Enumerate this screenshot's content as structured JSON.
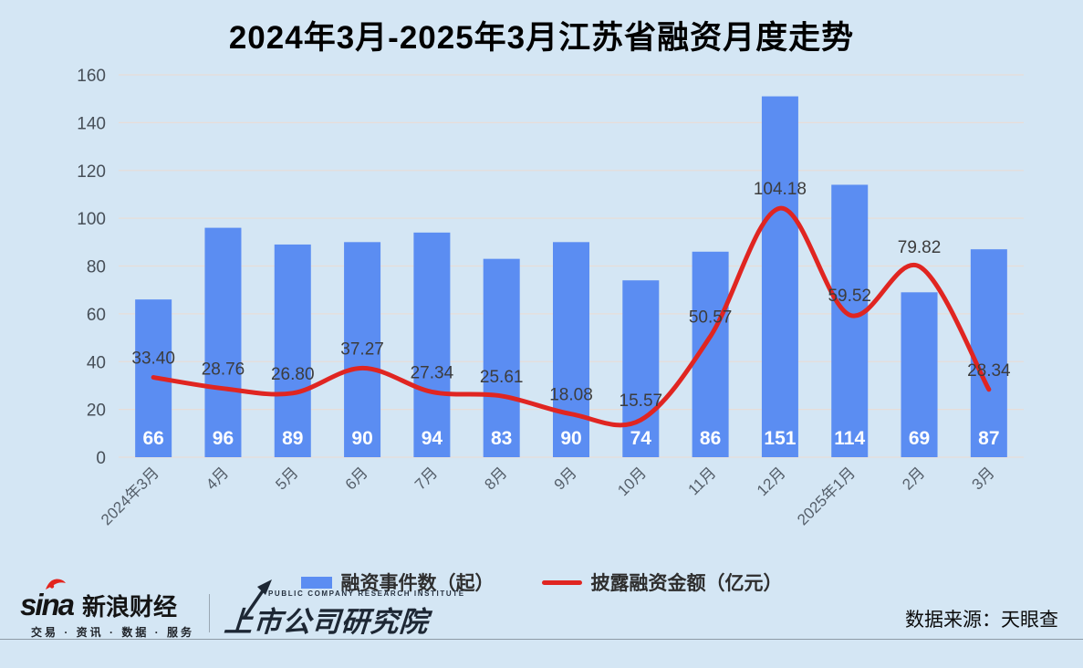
{
  "title": "2024年3月-2025年3月江苏省融资月度走势",
  "chart_data": {
    "type": "bar+line",
    "title": "2024年3月-2025年3月江苏省融资月度走势",
    "categories": [
      "2024年3月",
      "4月",
      "5月",
      "6月",
      "7月",
      "8月",
      "9月",
      "10月",
      "11月",
      "12月",
      "2025年1月",
      "2月",
      "3月"
    ],
    "series": [
      {
        "name": "融资事件数（起）",
        "type": "bar",
        "color": "#5b8df2",
        "values": [
          66,
          96,
          89,
          90,
          94,
          83,
          90,
          74,
          86,
          151,
          114,
          69,
          87
        ]
      },
      {
        "name": "披露融资金额（亿元）",
        "type": "line",
        "color": "#e02521",
        "values": [
          33.4,
          28.76,
          26.8,
          37.27,
          27.34,
          25.61,
          18.08,
          15.57,
          50.57,
          104.18,
          59.52,
          79.82,
          28.34
        ]
      }
    ],
    "ylim": [
      0,
      160
    ],
    "ytick_step": 20,
    "grid": true,
    "legend_position": "bottom",
    "bar_value_labels_inside": true,
    "line_value_label_decimals": 2
  },
  "legend": {
    "bar_label": "融资事件数（起）",
    "line_label": "披露融资金额（亿元）"
  },
  "footer": {
    "sina_word": "sina",
    "sina_brand": "新浪财经",
    "sina_tagline": "交易 · 资讯 · 数据 · 服务",
    "institute_en": "PUBLIC COMPANY RESEARCH INSTITUTE",
    "institute_cn": "上市公司研究院",
    "source": "数据来源：天眼查"
  },
  "colors": {
    "background": "#d4e6f4",
    "bar": "#5b8df2",
    "line": "#e02521",
    "grid": "#e7ddd8",
    "axis_label": "#474f58",
    "x_label": "#555f6a",
    "value_label": "#3c3c3c",
    "bar_label": "#ffffff"
  }
}
